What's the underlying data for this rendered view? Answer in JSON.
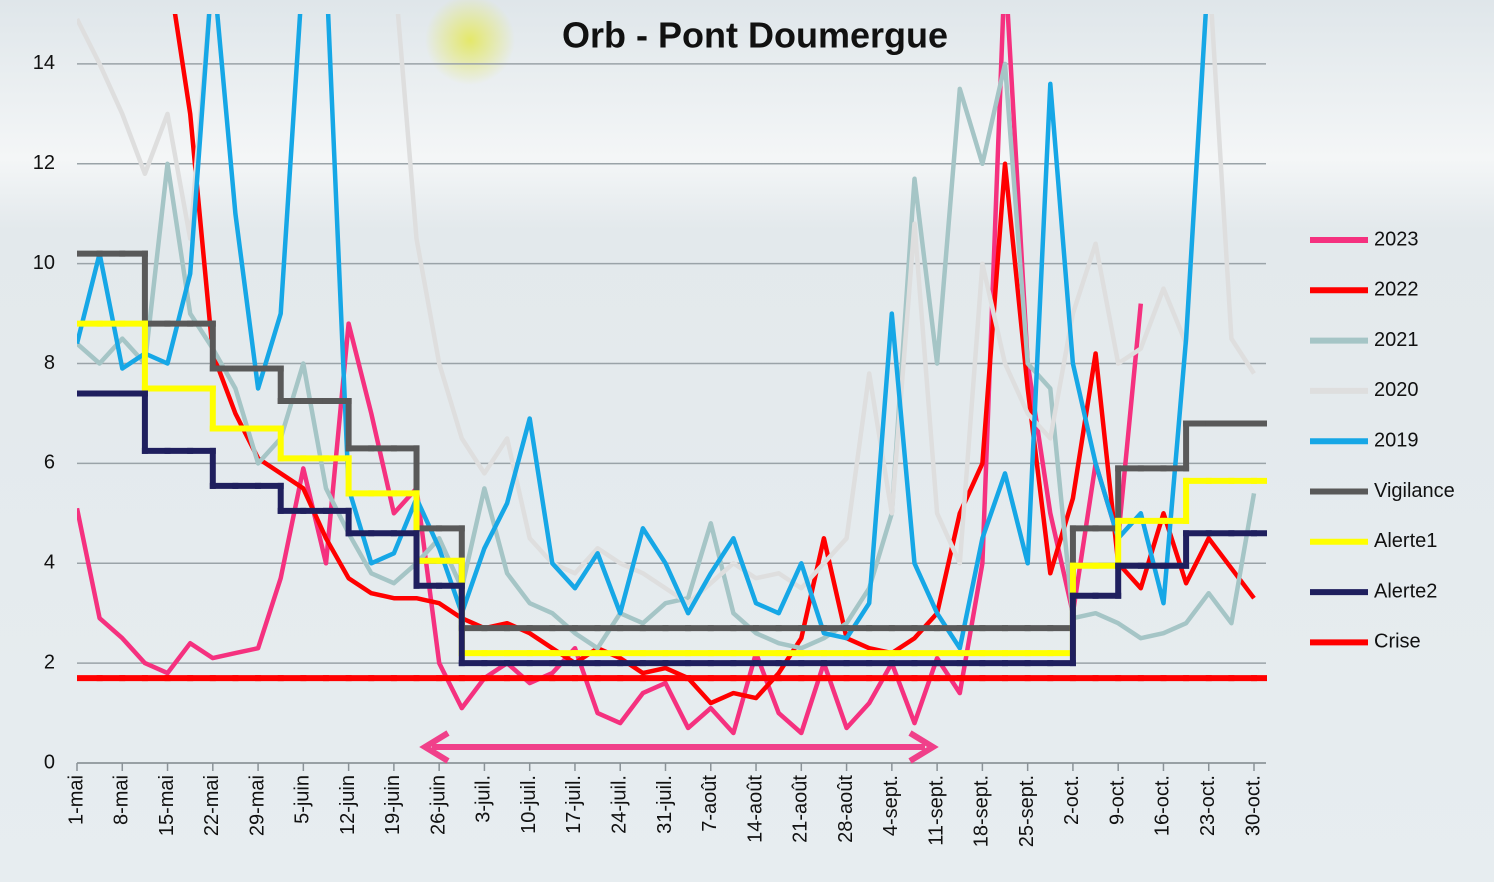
{
  "chart_data": {
    "type": "line",
    "title": "Orb - Pont Doumergue",
    "categories": [
      "1-mai",
      null,
      "8-mai",
      null,
      "15-mai",
      null,
      "22-mai",
      null,
      "29-mai",
      null,
      "5-juin",
      null,
      "12-juin",
      null,
      "19-juin",
      null,
      "26-juin",
      null,
      "3-juil.",
      null,
      "10-juil.",
      null,
      "17-juil.",
      null,
      "24-juil.",
      null,
      "31-juil.",
      null,
      "7-août",
      null,
      "14-août",
      null,
      "21-août",
      null,
      "28-août",
      null,
      "4-sept.",
      null,
      "11-sept.",
      null,
      "18-sept.",
      null,
      "25-sept.",
      null,
      "2-oct.",
      null,
      "9-oct.",
      null,
      "16-oct.",
      null,
      "23-oct.",
      null,
      "30-oct."
    ],
    "ylim": [
      0,
      15
    ],
    "yticks": [
      0,
      2,
      4,
      6,
      8,
      10,
      12,
      14
    ],
    "grid": true,
    "legend": "right",
    "series": [
      {
        "name": "2023",
        "color": "#f5317f",
        "values": [
          5.1,
          2.9,
          2.5,
          2.0,
          1.8,
          2.4,
          2.1,
          2.2,
          2.3,
          3.7,
          5.9,
          4.0,
          8.8,
          7.0,
          5.0,
          5.5,
          2.0,
          1.1,
          1.7,
          2.0,
          1.6,
          1.8,
          2.3,
          1.0,
          0.8,
          1.4,
          1.6,
          0.7,
          1.1,
          0.6,
          2.2,
          1.0,
          0.6,
          2.0,
          0.7,
          1.2,
          2.0,
          0.8,
          2.1,
          1.4,
          4.0,
          16,
          8.0,
          5.0,
          3.0,
          6.0,
          4.5,
          9.2,
          null,
          null,
          null,
          null,
          null
        ]
      },
      {
        "name": "2022",
        "color": "#ff0000",
        "values": [
          16,
          16,
          16,
          16,
          16,
          13,
          8.2,
          7.0,
          6.1,
          5.8,
          5.5,
          4.5,
          3.7,
          3.4,
          3.3,
          3.3,
          3.2,
          2.9,
          2.7,
          2.8,
          2.6,
          2.3,
          2.0,
          2.3,
          2.1,
          1.8,
          1.9,
          1.7,
          1.2,
          1.4,
          1.3,
          1.8,
          2.5,
          4.5,
          2.5,
          2.3,
          2.2,
          2.5,
          3.0,
          5.0,
          6.0,
          12.0,
          7.5,
          3.8,
          5.3,
          8.2,
          4.0,
          3.5,
          5.0,
          3.6,
          4.5,
          3.9,
          3.3
        ]
      },
      {
        "name": "2021",
        "color": "#a5c5c6",
        "values": [
          8.4,
          8.0,
          8.5,
          8.0,
          12.0,
          9.0,
          8.3,
          7.5,
          6.0,
          6.5,
          8.0,
          5.5,
          4.6,
          3.8,
          3.6,
          4.0,
          4.5,
          3.5,
          5.5,
          3.8,
          3.2,
          3.0,
          2.6,
          2.3,
          3.0,
          2.8,
          3.2,
          3.3,
          4.8,
          3.0,
          2.6,
          2.4,
          2.3,
          2.5,
          2.8,
          3.5,
          5.0,
          11.7,
          8.0,
          13.5,
          12.0,
          14.0,
          8.0,
          7.5,
          2.9,
          3.0,
          2.8,
          2.5,
          2.6,
          2.8,
          3.4,
          2.8,
          5.4
        ]
      },
      {
        "name": "2020",
        "color": "#dedede",
        "values": [
          14.9,
          14.0,
          13.0,
          11.8,
          13.0,
          10.5,
          16,
          16,
          16,
          16,
          16,
          16,
          16,
          16,
          16,
          10.5,
          8.0,
          6.5,
          5.8,
          6.5,
          4.5,
          4.0,
          3.8,
          4.3,
          4.0,
          3.8,
          3.5,
          3.2,
          3.6,
          4.0,
          3.7,
          3.8,
          3.5,
          4.0,
          4.5,
          7.8,
          5.0,
          10.8,
          5.0,
          4.0,
          10.0,
          8.0,
          7.0,
          6.5,
          9.0,
          10.4,
          8.0,
          8.3,
          9.5,
          8.4,
          16,
          8.5,
          7.8
        ]
      },
      {
        "name": "2019",
        "color": "#16a7e6",
        "values": [
          8.4,
          10.2,
          7.9,
          8.2,
          8.0,
          9.8,
          16,
          11.0,
          7.5,
          9.0,
          16,
          16,
          5.5,
          4.0,
          4.2,
          5.3,
          4.3,
          3.0,
          4.3,
          5.2,
          6.9,
          4.0,
          3.5,
          4.2,
          3.0,
          4.7,
          4.0,
          3.0,
          3.8,
          4.5,
          3.2,
          3.0,
          4.0,
          2.6,
          2.5,
          3.2,
          9.0,
          4.0,
          3.0,
          2.3,
          4.5,
          5.8,
          4.0,
          13.6,
          8.0,
          6.0,
          4.5,
          5.0,
          3.2,
          8.5,
          16,
          null,
          null
        ]
      },
      {
        "name": "Vigilance",
        "color": "#595959",
        "step": true,
        "values": [
          10.2,
          10.2,
          10.2,
          8.8,
          8.8,
          8.8,
          7.9,
          7.9,
          7.9,
          7.25,
          7.25,
          7.25,
          6.3,
          6.3,
          6.3,
          4.7,
          4.7,
          2.7,
          2.7,
          2.7,
          2.7,
          2.7,
          2.7,
          2.7,
          2.7,
          2.7,
          2.7,
          2.7,
          2.7,
          2.7,
          2.7,
          2.7,
          2.7,
          2.7,
          2.7,
          2.7,
          2.7,
          2.7,
          2.7,
          2.7,
          2.7,
          2.7,
          2.7,
          2.7,
          4.7,
          4.7,
          5.9,
          5.9,
          5.9,
          6.8,
          6.8,
          6.8,
          6.8
        ]
      },
      {
        "name": "Alerte1",
        "color": "#ffff00",
        "step": true,
        "values": [
          8.8,
          8.8,
          8.8,
          7.5,
          7.5,
          7.5,
          6.7,
          6.7,
          6.7,
          6.1,
          6.1,
          6.1,
          5.4,
          5.4,
          5.4,
          4.05,
          4.05,
          2.2,
          2.2,
          2.2,
          2.2,
          2.2,
          2.2,
          2.2,
          2.2,
          2.2,
          2.2,
          2.2,
          2.2,
          2.2,
          2.2,
          2.2,
          2.2,
          2.2,
          2.2,
          2.2,
          2.2,
          2.2,
          2.2,
          2.2,
          2.2,
          2.2,
          2.2,
          2.2,
          3.95,
          3.95,
          4.85,
          4.85,
          4.85,
          5.65,
          5.65,
          5.65,
          5.65
        ]
      },
      {
        "name": "Alerte2",
        "color": "#1f1f5e",
        "step": true,
        "values": [
          7.4,
          7.4,
          7.4,
          6.25,
          6.25,
          6.25,
          5.55,
          5.55,
          5.55,
          5.05,
          5.05,
          5.05,
          4.6,
          4.6,
          4.6,
          3.55,
          3.55,
          2.0,
          2.0,
          2.0,
          2.0,
          2.0,
          2.0,
          2.0,
          2.0,
          2.0,
          2.0,
          2.0,
          2.0,
          2.0,
          2.0,
          2.0,
          2.0,
          2.0,
          2.0,
          2.0,
          2.0,
          2.0,
          2.0,
          2.0,
          2.0,
          2.0,
          2.0,
          2.0,
          3.35,
          3.35,
          3.95,
          3.95,
          3.95,
          4.6,
          4.6,
          4.6,
          4.6
        ]
      },
      {
        "name": "Crise",
        "color": "#ff0000",
        "step": true,
        "values": [
          1.7,
          1.7,
          1.7,
          1.7,
          1.7,
          1.7,
          1.7,
          1.7,
          1.7,
          1.7,
          1.7,
          1.7,
          1.7,
          1.7,
          1.7,
          1.7,
          1.7,
          1.7,
          1.7,
          1.7,
          1.7,
          1.7,
          1.7,
          1.7,
          1.7,
          1.7,
          1.7,
          1.7,
          1.7,
          1.7,
          1.7,
          1.7,
          1.7,
          1.7,
          1.7,
          1.7,
          1.7,
          1.7,
          1.7,
          1.7,
          1.7,
          1.7,
          1.7,
          1.7,
          1.7,
          1.7,
          1.7,
          1.7,
          1.7,
          1.7,
          1.7,
          1.7,
          1.7
        ]
      }
    ]
  }
}
